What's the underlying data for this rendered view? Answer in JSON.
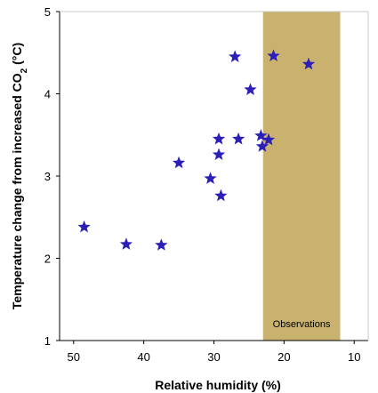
{
  "chart_data": {
    "type": "scatter",
    "xlabel": "Relative humidity (%)",
    "ylabel_main": "Temperature change from increased CO",
    "ylabel_sub": "2",
    "ylabel_unit": " (°C)",
    "x_reversed": true,
    "xlim": [
      52,
      8
    ],
    "ylim": [
      1,
      5
    ],
    "x_ticks": [
      50,
      40,
      30,
      20,
      10
    ],
    "y_ticks": [
      1,
      2,
      3,
      4,
      5
    ],
    "grid": false,
    "marker": "star",
    "marker_color": "#2b1fb8",
    "band": {
      "label": "Observations",
      "x_range": [
        23,
        12
      ],
      "color": "#c9b26e"
    },
    "points": [
      {
        "x": 48.5,
        "y": 2.38
      },
      {
        "x": 42.5,
        "y": 2.17
      },
      {
        "x": 37.5,
        "y": 2.16
      },
      {
        "x": 35.0,
        "y": 3.16
      },
      {
        "x": 30.5,
        "y": 2.97
      },
      {
        "x": 29.3,
        "y": 3.45
      },
      {
        "x": 29.3,
        "y": 3.26
      },
      {
        "x": 29.0,
        "y": 2.76
      },
      {
        "x": 27.0,
        "y": 4.45
      },
      {
        "x": 26.5,
        "y": 3.45
      },
      {
        "x": 24.8,
        "y": 4.05
      },
      {
        "x": 23.3,
        "y": 3.49
      },
      {
        "x": 23.1,
        "y": 3.36
      },
      {
        "x": 22.2,
        "y": 3.44
      },
      {
        "x": 21.5,
        "y": 4.46
      },
      {
        "x": 16.5,
        "y": 4.36
      }
    ]
  }
}
